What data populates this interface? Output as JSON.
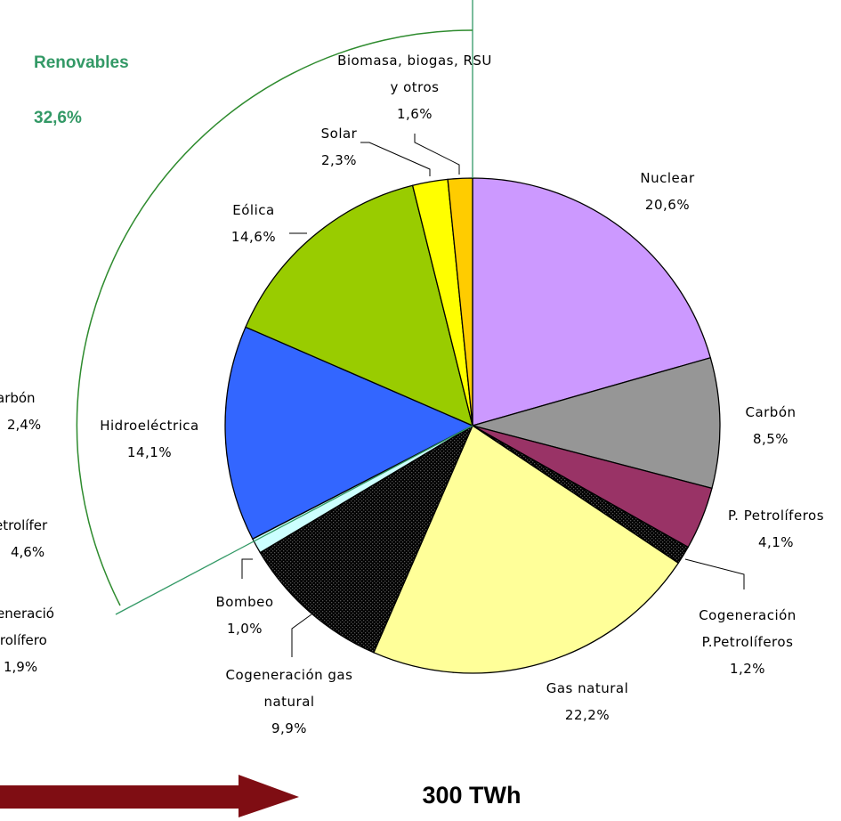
{
  "chart_data": {
    "type": "pie",
    "categories": [
      "Nuclear",
      "Carbón",
      "P. Petrolíferos",
      "Cogeneración P.Petrolíferos",
      "Gas natural",
      "Cogeneración gas natural",
      "Bombeo",
      "Hidroeléctrica",
      "Eólica",
      "Solar",
      "Biomasa, biogas, RSU y otros"
    ],
    "values": [
      20.6,
      8.5,
      4.1,
      1.2,
      22.2,
      9.9,
      1.0,
      14.1,
      14.6,
      2.3,
      1.6
    ],
    "value_labels": [
      "20,6%",
      "8,5%",
      "4,1%",
      "1,2%",
      "22,2%",
      "9,9%",
      "1,0%",
      "14,1%",
      "14,6%",
      "2,3%",
      "1,6%"
    ],
    "colors": [
      "#cc99ff",
      "#969696",
      "#993366",
      "#993366",
      "#ffff99",
      "#ffff99",
      "#ccffff",
      "#3366ff",
      "#99cc00",
      "#ffff00",
      "#ffcc00"
    ],
    "dotted": [
      false,
      false,
      false,
      true,
      false,
      true,
      false,
      false,
      false,
      false,
      false
    ],
    "group_label": "Renovables",
    "group_value": "32,6%",
    "total": "300 TWh",
    "cropped_labels": [
      "arbón",
      "2,4%",
      "etrolífer",
      "4,6%",
      "eneració",
      "trolífero",
      "1,9%"
    ]
  }
}
